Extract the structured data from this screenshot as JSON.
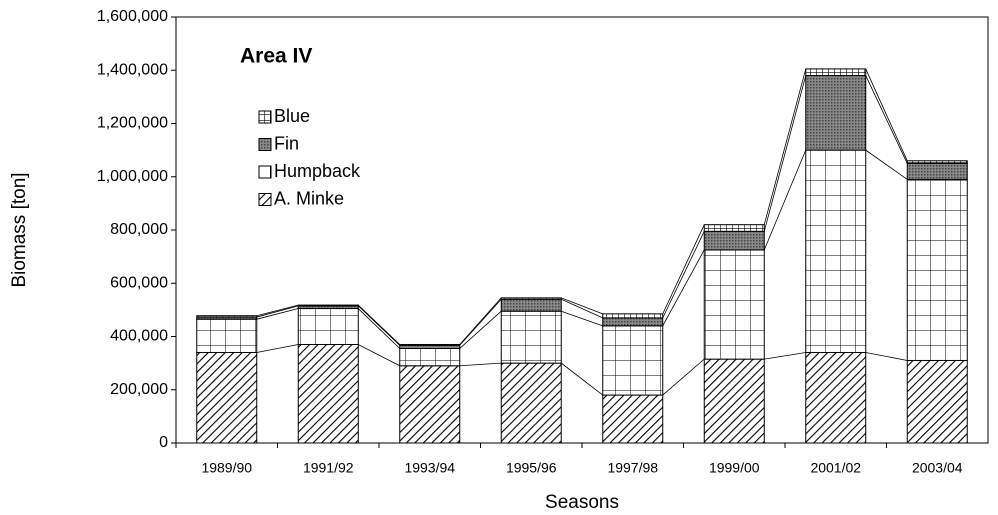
{
  "chart_data": {
    "type": "stacked-bar",
    "annotation": "Area IV",
    "x_label": "Seasons",
    "y_label": "Biomass [ton]",
    "categories": [
      "1989/90",
      "1991/92",
      "1993/94",
      "1995/96",
      "1997/98",
      "1999/00",
      "2001/02",
      "2003/04"
    ],
    "series": [
      {
        "name": "A. Minke",
        "pattern": "diagonal",
        "values": [
          340000,
          370000,
          290000,
          300000,
          180000,
          315000,
          340000,
          310000
        ]
      },
      {
        "name": "Humpback",
        "pattern": "grid",
        "values": [
          125000,
          135000,
          65000,
          195000,
          260000,
          410000,
          760000,
          680000
        ]
      },
      {
        "name": "Fin",
        "pattern": "dense",
        "values": [
          8000,
          10000,
          12000,
          45000,
          30000,
          70000,
          280000,
          60000
        ]
      },
      {
        "name": "Blue",
        "pattern": "fine-grid",
        "values": [
          5000,
          3000,
          3000,
          5000,
          15000,
          25000,
          25000,
          10000
        ]
      }
    ],
    "ylim": [
      0,
      1600000
    ],
    "yticks": [
      0,
      {
        "value": 200000,
        "label": "200,000"
      },
      {
        "value": 400000,
        "label": "400,000"
      },
      {
        "value": 600000,
        "label": "600,000"
      },
      {
        "value": 800000,
        "label": "800,000"
      },
      {
        "value": 1000000,
        "label": "1,000,000"
      },
      {
        "value": 1200000,
        "label": "1,200,000"
      },
      {
        "value": 1400000,
        "label": "1,400,000"
      },
      {
        "value": 1600000,
        "label": "1,600,000"
      }
    ],
    "grid": false,
    "series_lines": true
  }
}
